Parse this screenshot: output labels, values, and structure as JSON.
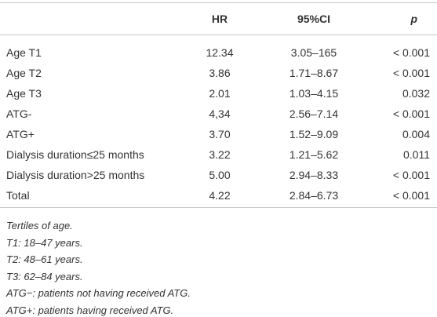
{
  "table": {
    "columns": [
      "",
      "HR",
      "95%CI",
      "p"
    ],
    "rows": [
      [
        "Age T1",
        "12.34",
        "3.05–165",
        "< 0.001"
      ],
      [
        "Age T2",
        "3.86",
        "1.71–8.67",
        "< 0.001"
      ],
      [
        "Age T3",
        "2.01",
        "1.03–4.15",
        "0.032"
      ],
      [
        "ATG-",
        "4,34",
        "2.56–7.14",
        "< 0.001"
      ],
      [
        "ATG+",
        "3.70",
        "1.52–9.09",
        "0.004"
      ],
      [
        "Dialysis duration≤25 months",
        "3.22",
        "1.21–5.62",
        "0.011"
      ],
      [
        "Dialysis duration>25 months",
        "5.00",
        "2.94–8.33",
        "< 0.001"
      ],
      [
        "Total",
        "4.22",
        "2.84–6.73",
        "< 0.001"
      ]
    ]
  },
  "footnotes": [
    "Tertiles of age.",
    "T1: 18–47 years.",
    "T2: 48–61 years.",
    "T3: 62–84 years.",
    "ATG−: patients not having received ATG.",
    "ATG+: patients having received ATG."
  ]
}
